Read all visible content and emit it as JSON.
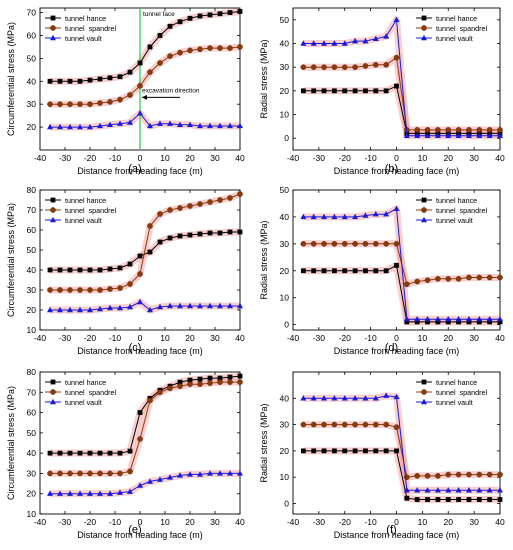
{
  "figure": {
    "xlabel_text": "Distance from heading face (m)"
  },
  "chart_data": [
    {
      "panel": "(a)",
      "type": "line",
      "xlabel": "Distance from heading face (m)",
      "ylabel": "Circumferential stress (MPa)",
      "xlim": [
        -40,
        40
      ],
      "ylim": [
        10,
        72
      ],
      "xticks": [
        -40,
        -30,
        -20,
        -10,
        0,
        10,
        20,
        30,
        40
      ],
      "yticks": [
        20,
        30,
        40,
        50,
        60,
        70
      ],
      "legend": "top-left",
      "annotations": [
        "tunnel face",
        "excavation direction"
      ],
      "x": [
        -36,
        -32,
        -28,
        -24,
        -20,
        -16,
        -12,
        -8,
        -4,
        0,
        4,
        8,
        12,
        16,
        20,
        24,
        28,
        32,
        36,
        40
      ],
      "series": [
        {
          "name": "tunnel hance",
          "values": [
            40,
            40,
            40,
            40,
            40.5,
            41,
            41.5,
            42,
            44,
            48,
            55,
            60,
            64,
            66,
            67.5,
            68.5,
            69,
            69.5,
            70,
            70.5
          ]
        },
        {
          "name": "tunnel  spandrel",
          "values": [
            30,
            30,
            30,
            30,
            30,
            30.5,
            31,
            32,
            34,
            38,
            44,
            48,
            51,
            52.5,
            53.5,
            54,
            54.5,
            54.5,
            54.5,
            55
          ]
        },
        {
          "name": "tunnel vault",
          "values": [
            20,
            20,
            20,
            20,
            20,
            20.5,
            21,
            21.5,
            22,
            26,
            20.5,
            21.5,
            21.5,
            21,
            21,
            20.5,
            20.5,
            20.5,
            20.5,
            20.5
          ]
        }
      ]
    },
    {
      "panel": "(b)",
      "type": "line",
      "xlabel": "Distance from heading face (m)",
      "ylabel": "Radial stress (MPa)",
      "xlim": [
        -40,
        40
      ],
      "ylim": [
        -5,
        55
      ],
      "xticks": [
        -40,
        -30,
        -20,
        -10,
        0,
        10,
        20,
        30,
        40
      ],
      "yticks": [
        0,
        10,
        20,
        30,
        40,
        50
      ],
      "legend": "top-right",
      "x": [
        -36,
        -32,
        -28,
        -24,
        -20,
        -16,
        -12,
        -8,
        -4,
        0,
        4,
        8,
        12,
        16,
        20,
        24,
        28,
        32,
        36,
        40
      ],
      "series": [
        {
          "name": "tunnel hance",
          "values": [
            20,
            20,
            20,
            20,
            20,
            20,
            20,
            20,
            20,
            22,
            2,
            2,
            2,
            2,
            2,
            2,
            2,
            2,
            2,
            2
          ]
        },
        {
          "name": "tunnel  spandrel",
          "values": [
            30,
            30,
            30,
            30,
            30,
            30,
            30.5,
            31,
            31,
            34,
            3.5,
            3.5,
            3.5,
            3.5,
            3.5,
            3.5,
            3.5,
            3.5,
            3.5,
            3.5
          ]
        },
        {
          "name": "tunnel vault",
          "values": [
            40,
            40,
            40,
            40,
            40,
            41,
            41,
            42,
            43,
            50,
            1,
            1,
            1,
            1,
            1,
            1,
            1,
            1,
            1,
            1
          ]
        }
      ]
    },
    {
      "panel": "(c)",
      "type": "line",
      "xlabel": "Distance from heading face (m)",
      "ylabel": "Circumferential stress (MPa)",
      "xlim": [
        -40,
        40
      ],
      "ylim": [
        10,
        80
      ],
      "xticks": [
        -40,
        -30,
        -20,
        -10,
        0,
        10,
        20,
        30,
        40
      ],
      "yticks": [
        10,
        20,
        30,
        40,
        50,
        60,
        70,
        80
      ],
      "legend": "top-left",
      "x": [
        -36,
        -32,
        -28,
        -24,
        -20,
        -16,
        -12,
        -8,
        -4,
        0,
        4,
        8,
        12,
        16,
        20,
        24,
        28,
        32,
        36,
        40
      ],
      "series": [
        {
          "name": "tunnel hance",
          "values": [
            40,
            40,
            40,
            40,
            40,
            40,
            40.5,
            41,
            43,
            47,
            49,
            54,
            56,
            57,
            57.5,
            58,
            58.5,
            58.5,
            59,
            59
          ]
        },
        {
          "name": "tunnel  spandrel",
          "values": [
            30,
            30,
            30,
            30,
            30,
            30,
            30.5,
            31,
            33,
            38,
            62,
            68,
            70,
            71,
            72,
            73,
            74,
            75,
            76,
            78
          ]
        },
        {
          "name": "tunnel vault",
          "values": [
            20,
            20,
            20,
            20,
            20,
            20.5,
            21,
            21,
            21.5,
            24,
            20,
            21.5,
            22,
            22,
            22,
            22,
            22,
            22,
            22,
            22
          ]
        }
      ]
    },
    {
      "panel": "(d)",
      "type": "line",
      "xlabel": "Distance from heading face (m)",
      "ylabel": "Radial stress (MPa)",
      "xlim": [
        -40,
        40
      ],
      "ylim": [
        -2,
        50
      ],
      "xticks": [
        -40,
        -30,
        -20,
        -10,
        0,
        10,
        20,
        30,
        40
      ],
      "yticks": [
        0,
        10,
        20,
        30,
        40,
        50
      ],
      "legend": "top-right",
      "x": [
        -36,
        -32,
        -28,
        -24,
        -20,
        -16,
        -12,
        -8,
        -4,
        0,
        4,
        8,
        12,
        16,
        20,
        24,
        28,
        32,
        36,
        40
      ],
      "series": [
        {
          "name": "tunnel hance",
          "values": [
            20,
            20,
            20,
            20,
            20,
            20,
            20,
            20,
            20,
            22,
            1,
            1,
            1,
            1,
            1,
            1,
            1,
            1,
            1,
            1
          ]
        },
        {
          "name": "tunnel  spandrel",
          "values": [
            30,
            30,
            30,
            30,
            30,
            30,
            30,
            30,
            30,
            30,
            15,
            16,
            16.5,
            17,
            17,
            17,
            17.5,
            17.5,
            17.5,
            17.5
          ]
        },
        {
          "name": "tunnel vault",
          "values": [
            40,
            40,
            40,
            40,
            40,
            40,
            40.5,
            41,
            41,
            43,
            2,
            2,
            2,
            2,
            2,
            2,
            2,
            2,
            2,
            2
          ]
        }
      ]
    },
    {
      "panel": "(e)",
      "type": "line",
      "xlabel": "Distance from heading face (m)",
      "ylabel": "Circumferential stress (MPa)",
      "xlim": [
        -40,
        40
      ],
      "ylim": [
        10,
        80
      ],
      "xticks": [
        -40,
        -30,
        -20,
        -10,
        0,
        10,
        20,
        30,
        40
      ],
      "yticks": [
        10,
        20,
        30,
        40,
        50,
        60,
        70,
        80
      ],
      "legend": "top-left",
      "x": [
        -36,
        -32,
        -28,
        -24,
        -20,
        -16,
        -12,
        -8,
        -4,
        0,
        4,
        8,
        12,
        16,
        20,
        24,
        28,
        32,
        36,
        40
      ],
      "series": [
        {
          "name": "tunnel hance",
          "values": [
            40,
            40,
            40,
            40,
            40,
            40,
            40,
            40,
            41,
            60,
            67,
            71,
            73,
            75,
            76,
            76.5,
            77,
            77,
            77.5,
            78
          ]
        },
        {
          "name": "tunnel  spandrel",
          "values": [
            30,
            30,
            30,
            30,
            30,
            30,
            30,
            30,
            31,
            47,
            66,
            70,
            72,
            73,
            74,
            74,
            74.5,
            75,
            75,
            75
          ]
        },
        {
          "name": "tunnel vault",
          "values": [
            20,
            20,
            20,
            20,
            20,
            20,
            20,
            20.5,
            21,
            24,
            26,
            27,
            28,
            29,
            29.5,
            29.5,
            30,
            30,
            30,
            30
          ]
        }
      ]
    },
    {
      "panel": "(f)",
      "type": "line",
      "xlabel": "Distance from heading face (m)",
      "ylabel": "Radial stress (MPa)",
      "xlim": [
        -40,
        40
      ],
      "ylim": [
        -4,
        50
      ],
      "xticks": [
        -40,
        -30,
        -20,
        -10,
        0,
        10,
        20,
        30,
        40
      ],
      "yticks": [
        0,
        10,
        20,
        30,
        40
      ],
      "legend": "top-right",
      "x": [
        -36,
        -32,
        -28,
        -24,
        -20,
        -16,
        -12,
        -8,
        -4,
        0,
        4,
        8,
        12,
        16,
        20,
        24,
        28,
        32,
        36,
        40
      ],
      "series": [
        {
          "name": "tunnel hance",
          "values": [
            20,
            20,
            20,
            20,
            20,
            20,
            20,
            20,
            20,
            20,
            2,
            1.5,
            1.5,
            1.5,
            1.5,
            1.5,
            1.5,
            1.5,
            1.5,
            1.5
          ]
        },
        {
          "name": "tunnel  spandrel",
          "values": [
            30,
            30,
            30,
            30,
            30,
            30,
            30,
            30,
            30,
            29,
            10,
            10.5,
            10.5,
            10.5,
            11,
            11,
            11,
            11,
            11,
            11
          ]
        },
        {
          "name": "tunnel vault",
          "values": [
            40,
            40,
            40,
            40,
            40,
            40,
            40,
            40,
            41,
            40.5,
            5,
            5,
            5,
            5,
            5,
            5,
            5,
            5,
            5,
            5
          ]
        }
      ]
    }
  ],
  "colors": {
    "hance": "#000000",
    "spandrel": "#8b3a0a",
    "vault": "#1a1adb",
    "band": "#f4a8a8",
    "face_line": "#2ecc40",
    "arrow": "#000000"
  },
  "markers": {
    "hance": "square",
    "spandrel": "circle",
    "vault": "triangle"
  }
}
